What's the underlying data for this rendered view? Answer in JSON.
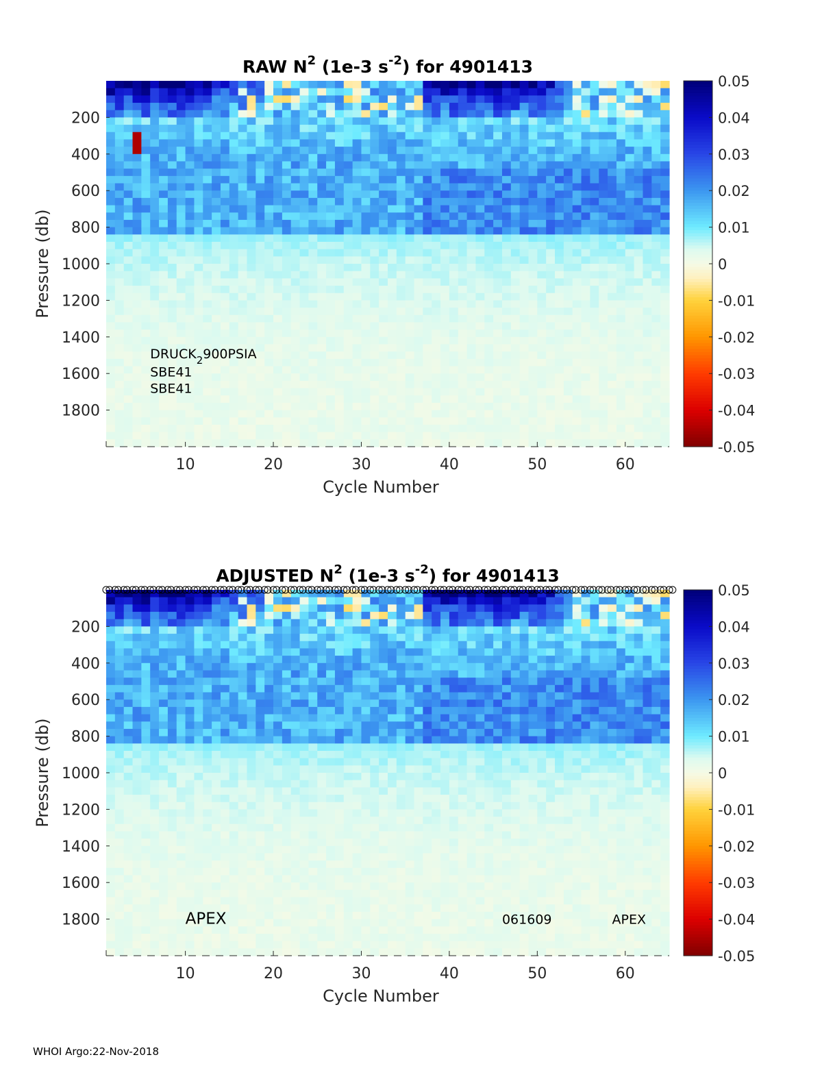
{
  "footer": "WHOI Argo:22-Nov-2018",
  "chart_data": [
    {
      "type": "heatmap",
      "title": {
        "prefix": "RAW N",
        "sup1": "2",
        "mid": " (1e-3 s",
        "sup2": "-2",
        "suffix": ") for 4901413"
      },
      "xlabel": "Cycle Number",
      "ylabel": "Pressure (db)",
      "xlim": [
        1,
        65
      ],
      "ylim": [
        0,
        2000
      ],
      "xticks": [
        10,
        20,
        30,
        40,
        50,
        60
      ],
      "yticks": [
        200,
        400,
        600,
        800,
        1000,
        1200,
        1400,
        1600,
        1800
      ],
      "colorbar": {
        "min": -0.05,
        "max": 0.05,
        "ticks": [
          "0.05",
          "0.04",
          "0.03",
          "0.02",
          "0.01",
          "0",
          "-0.01",
          "-0.02",
          "-0.03",
          "-0.04",
          "-0.05"
        ]
      },
      "annotations": [
        {
          "text": "DRUCK",
          "sub": "2",
          "text2": "900PSIA",
          "x": 6,
          "y": 1490
        },
        {
          "text": "SBE41",
          "x": 6,
          "y": 1590
        },
        {
          "text": "SBE41",
          "x": 6,
          "y": 1680
        }
      ],
      "qc_markers": false
    },
    {
      "type": "heatmap",
      "title": {
        "prefix": "ADJUSTED N",
        "sup1": "2",
        "mid": " (1e-3 s",
        "sup2": "-2",
        "suffix": ") for 4901413"
      },
      "xlabel": "Cycle Number",
      "ylabel": "Pressure (db)",
      "xlim": [
        1,
        65
      ],
      "ylim": [
        0,
        2000
      ],
      "xticks": [
        10,
        20,
        30,
        40,
        50,
        60
      ],
      "yticks": [
        200,
        400,
        600,
        800,
        1000,
        1200,
        1400,
        1600,
        1800
      ],
      "colorbar": {
        "min": -0.05,
        "max": 0.05,
        "ticks": [
          "0.05",
          "0.04",
          "0.03",
          "0.02",
          "0.01",
          "0",
          "-0.01",
          "-0.02",
          "-0.03",
          "-0.04",
          "-0.05"
        ]
      },
      "annotations": [
        {
          "text": "APEX",
          "x": 10,
          "y": 1800,
          "large": true
        },
        {
          "text": "061609",
          "x": 46,
          "y": 1800
        },
        {
          "text": "APEX",
          "x": 58.5,
          "y": 1800
        }
      ],
      "qc_markers": true
    }
  ]
}
